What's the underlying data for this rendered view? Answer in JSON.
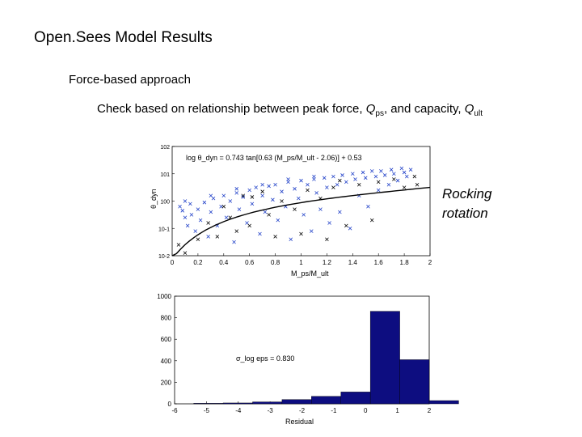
{
  "slide": {
    "title": "Open.Sees Model Results",
    "bullet1": "Force-based approach",
    "bullet2": {
      "pre": "Check based on relationship between peak force, ",
      "q1_sym": "Q",
      "q1_sub": "ps",
      "mid": ", and capacity, ",
      "q2_sym": "Q",
      "q2_sub": "ult"
    },
    "note_line1": "Rocking",
    "note_line2": "rotation"
  },
  "chart_data": [
    {
      "type": "scatter",
      "equation": "log θ_dyn = 0.743 tan[0.63 (M_ps/M_ult - 2.06)] + 0.53",
      "xlabel": "M_ps/M_ult",
      "ylabel": "θ_dyn",
      "xlim": [
        0,
        2
      ],
      "ylim_log10": [
        -2,
        2
      ],
      "yscale": "log",
      "x_ticks": [
        "0",
        "0.2",
        "0.4",
        "0.6",
        "0.8",
        "1",
        "1.2",
        "1.4",
        "1.6",
        "1.8",
        "2"
      ],
      "y_ticks": [
        "10-2",
        "10-1",
        "100",
        "101",
        "102"
      ],
      "series": [
        {
          "color": "#1f3fc8",
          "points": [
            [
              0.08,
              -0.35
            ],
            [
              0.1,
              -0.6
            ],
            [
              0.12,
              -0.9
            ],
            [
              0.15,
              -0.5
            ],
            [
              0.18,
              -1.1
            ],
            [
              0.2,
              -0.3
            ],
            [
              0.22,
              -0.7
            ],
            [
              0.25,
              -0.05
            ],
            [
              0.28,
              -1.3
            ],
            [
              0.3,
              -0.4
            ],
            [
              0.32,
              0.1
            ],
            [
              0.35,
              -0.9
            ],
            [
              0.38,
              -0.2
            ],
            [
              0.4,
              0.2
            ],
            [
              0.42,
              -0.6
            ],
            [
              0.45,
              0.0
            ],
            [
              0.48,
              -1.5
            ],
            [
              0.5,
              0.3
            ],
            [
              0.52,
              -0.3
            ],
            [
              0.55,
              0.15
            ],
            [
              0.58,
              -0.8
            ],
            [
              0.6,
              0.4
            ],
            [
              0.62,
              -0.1
            ],
            [
              0.65,
              0.5
            ],
            [
              0.68,
              -1.2
            ],
            [
              0.7,
              0.2
            ],
            [
              0.72,
              -0.4
            ],
            [
              0.75,
              0.55
            ],
            [
              0.78,
              0.05
            ],
            [
              0.8,
              0.6
            ],
            [
              0.82,
              -0.7
            ],
            [
              0.85,
              0.35
            ],
            [
              0.88,
              -0.2
            ],
            [
              0.9,
              0.7
            ],
            [
              0.92,
              -1.4
            ],
            [
              0.95,
              0.45
            ],
            [
              0.98,
              0.1
            ],
            [
              1.0,
              0.75
            ],
            [
              1.02,
              -0.5
            ],
            [
              1.05,
              0.6
            ],
            [
              1.08,
              -1.1
            ],
            [
              1.1,
              0.8
            ],
            [
              1.12,
              0.3
            ],
            [
              1.15,
              -0.3
            ],
            [
              1.18,
              0.85
            ],
            [
              1.2,
              0.5
            ],
            [
              1.22,
              -0.8
            ],
            [
              1.25,
              0.9
            ],
            [
              1.28,
              0.6
            ],
            [
              1.3,
              -0.4
            ],
            [
              1.32,
              0.95
            ],
            [
              1.35,
              0.7
            ],
            [
              1.38,
              -1.0
            ],
            [
              1.4,
              1.0
            ],
            [
              1.42,
              0.8
            ],
            [
              1.45,
              0.2
            ],
            [
              1.48,
              1.05
            ],
            [
              1.5,
              0.85
            ],
            [
              1.52,
              -0.2
            ],
            [
              1.55,
              1.1
            ],
            [
              1.58,
              0.9
            ],
            [
              1.6,
              0.4
            ],
            [
              1.62,
              1.1
            ],
            [
              1.65,
              0.95
            ],
            [
              1.68,
              0.6
            ],
            [
              1.7,
              1.15
            ],
            [
              1.72,
              1.0
            ],
            [
              1.75,
              0.75
            ],
            [
              1.78,
              1.2
            ],
            [
              1.8,
              1.05
            ],
            [
              1.82,
              0.9
            ],
            [
              1.85,
              1.15
            ],
            [
              0.06,
              -0.2
            ],
            [
              0.1,
              0.0
            ],
            [
              0.14,
              -0.1
            ],
            [
              0.3,
              0.2
            ],
            [
              0.5,
              0.45
            ],
            [
              0.7,
              0.6
            ],
            [
              0.9,
              0.8
            ],
            [
              1.1,
              0.9
            ]
          ]
        },
        {
          "color": "#000000",
          "points": [
            [
              0.05,
              -1.6
            ],
            [
              0.1,
              -1.9
            ],
            [
              0.2,
              -1.4
            ],
            [
              0.28,
              -0.8
            ],
            [
              0.35,
              -1.3
            ],
            [
              0.45,
              -0.6
            ],
            [
              0.5,
              -1.1
            ],
            [
              0.6,
              -0.9
            ],
            [
              0.62,
              0.15
            ],
            [
              0.75,
              -0.5
            ],
            [
              0.8,
              -1.3
            ],
            [
              0.85,
              0.0
            ],
            [
              0.95,
              -0.3
            ],
            [
              1.0,
              -1.2
            ],
            [
              1.05,
              0.4
            ],
            [
              1.15,
              0.1
            ],
            [
              1.2,
              -1.4
            ],
            [
              1.25,
              0.5
            ],
            [
              1.35,
              -0.9
            ],
            [
              1.45,
              0.6
            ],
            [
              1.55,
              -0.7
            ],
            [
              1.6,
              0.7
            ],
            [
              1.72,
              0.8
            ],
            [
              1.8,
              0.5
            ],
            [
              1.88,
              0.9
            ],
            [
              1.9,
              0.6
            ],
            [
              0.4,
              -0.2
            ],
            [
              0.55,
              0.2
            ],
            [
              0.7,
              0.35
            ],
            [
              1.3,
              0.75
            ]
          ]
        }
      ]
    },
    {
      "type": "bar",
      "annotation": "σ_log eps = 0.830",
      "xlabel": "Residual",
      "ylabel": "",
      "xlim": [
        -6,
        2
      ],
      "ylim": [
        0,
        1000
      ],
      "x_ticks": [
        "-6",
        "-5",
        "-4",
        "-3",
        "-2",
        "-1",
        "0",
        "1",
        "2"
      ],
      "y_ticks": [
        "0",
        "200",
        "400",
        "600",
        "800",
        "1000"
      ],
      "bar_color": "#0d0d80",
      "bins": [
        {
          "from": -5.5,
          "to": -4.5,
          "value": 5
        },
        {
          "from": -4.5,
          "to": -3.5,
          "value": 8
        },
        {
          "from": -3.5,
          "to": -2.5,
          "value": 18
        },
        {
          "from": -2.5,
          "to": -1.5,
          "value": 40
        },
        {
          "from": -1.5,
          "to": -0.5,
          "value": 70
        },
        {
          "from": -0.5,
          "to": 0.5,
          "value": 110
        },
        {
          "from": 0.5,
          "to": 1.5,
          "value": 860
        },
        {
          "from": 1.5,
          "to": 2.5,
          "value": 410
        },
        {
          "from": 2.5,
          "to": 3.5,
          "value": 30
        }
      ]
    }
  ]
}
